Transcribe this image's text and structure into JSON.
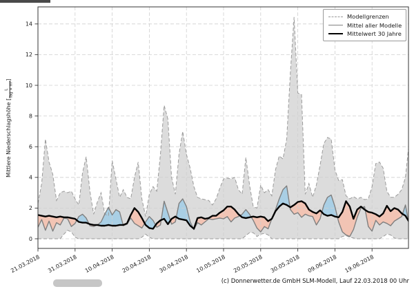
{
  "footer": {
    "credit": "(c) Donnerwetter.de GmbH SLM-Modell, Lauf 22.03.2018 00 Uhr"
  },
  "chart_data": {
    "type": "area",
    "ylabel_text": "Mittlere Niederschlagshöhe",
    "ylabel_bracket_open": "[",
    "ylabel_frac_num": "L",
    "ylabel_frac_den": "Tag × m²",
    "ylabel_bracket_close": "]",
    "y_ticks": [
      0,
      2,
      4,
      6,
      8,
      10,
      12,
      14
    ],
    "ylim": [
      -0.65,
      15.1
    ],
    "grid": true,
    "legend_position": "upper right",
    "legend": [
      {
        "label": "Modellgrenzen",
        "style": "dashed-gray"
      },
      {
        "label": "Mittel aller Modelle",
        "style": "solid-gray"
      },
      {
        "label": "Mittelwert 30 Jahre",
        "style": "solid-black"
      }
    ],
    "x_tick_days": [
      0,
      10,
      20,
      30,
      40,
      50,
      60,
      70,
      80,
      90
    ],
    "x_tick_labels": [
      "21.03.2018",
      "31.03.2018",
      "10.04.2018",
      "20.04.2018",
      "30.04.2018",
      "10.05.2018",
      "20.05.2018",
      "30.05.2018",
      "09.06.2018",
      "19.06.2018"
    ],
    "colors": {
      "envelope_fill": "#dcdcdc",
      "boundary_line": "#9a9a9a",
      "model_mean_line": "#7f7f7f",
      "mean30_line": "#000000",
      "above_fill": "#a9cfe5",
      "below_fill": "#f2c4b4",
      "grid": "#cfcfcf",
      "spine": "#333333"
    },
    "series": [
      {
        "name": "Modellgrenzen oben",
        "values": [
          2.3,
          3.6,
          6.5,
          5.0,
          4.2,
          2.5,
          3.0,
          3.1,
          3.0,
          3.1,
          2.6,
          2.2,
          4.3,
          5.35,
          3.1,
          1.6,
          2.4,
          3.0,
          1.6,
          1.5,
          5.1,
          3.9,
          2.7,
          3.2,
          2.7,
          2.6,
          4.0,
          5.0,
          2.6,
          1.45,
          2.9,
          3.4,
          3.1,
          5.5,
          8.7,
          7.8,
          4.0,
          2.9,
          5.5,
          7.0,
          5.5,
          4.6,
          3.4,
          2.7,
          2.6,
          2.55,
          2.5,
          2.2,
          2.6,
          3.3,
          3.9,
          3.95,
          3.9,
          4.0,
          3.2,
          2.9,
          5.3,
          3.5,
          2.1,
          2.0,
          3.5,
          3.0,
          3.2,
          2.8,
          4.5,
          5.4,
          5.2,
          6.5,
          10.8,
          14.45,
          9.5,
          9.4,
          2.9,
          3.6,
          2.7,
          3.5,
          4.8,
          6.2,
          6.6,
          6.5,
          4.5,
          3.8,
          3.85,
          2.8,
          2.6,
          2.75,
          2.6,
          2.7,
          2.55,
          2.6,
          3.4,
          4.9,
          5.0,
          4.6,
          3.1,
          2.7,
          2.7,
          2.9,
          3.2,
          4.0,
          6.3
        ]
      },
      {
        "name": "Modellgrenzen unten",
        "values": [
          0,
          0,
          0,
          0,
          0,
          0,
          0,
          0.3,
          0.55,
          0.45,
          0.1,
          0,
          0,
          0,
          0,
          0,
          0,
          0,
          0,
          0,
          0,
          0,
          0,
          0,
          0,
          0,
          0,
          0,
          0.1,
          0.3,
          0.1,
          0,
          0,
          0,
          0,
          0,
          0,
          0,
          0,
          0,
          0,
          0,
          0,
          0,
          0,
          0,
          0,
          0,
          0,
          0,
          0,
          0,
          0,
          0,
          0,
          0,
          0.2,
          0.4,
          0.4,
          0.15,
          0.3,
          0.35,
          0.25,
          0,
          0,
          0,
          0,
          0,
          0,
          0,
          0,
          0,
          0,
          0,
          0,
          0,
          0,
          0,
          0,
          0,
          0,
          0,
          0.15,
          0.2,
          0.1,
          0.05,
          0,
          0,
          0,
          0,
          0,
          0,
          0,
          0.15,
          0.3,
          0.25,
          0.05,
          0,
          0,
          0,
          0
        ]
      },
      {
        "name": "Mittel aller Modelle",
        "values": [
          0.75,
          1.25,
          0.55,
          1.15,
          0.5,
          1.05,
          0.9,
          1.35,
          1.3,
          0.8,
          1.0,
          1.45,
          1.6,
          1.35,
          0.85,
          0.8,
          0.9,
          1.1,
          1.6,
          2.05,
          1.55,
          1.9,
          1.75,
          0.85,
          0.95,
          1.35,
          1.0,
          0.85,
          0.7,
          1.1,
          1.45,
          1.2,
          0.75,
          0.9,
          2.45,
          1.7,
          0.95,
          1.1,
          2.3,
          2.6,
          2.1,
          1.1,
          0.6,
          1.05,
          0.9,
          1.1,
          1.3,
          1.25,
          1.3,
          1.35,
          1.3,
          1.45,
          1.1,
          1.35,
          1.45,
          1.6,
          1.9,
          1.6,
          1.2,
          0.7,
          0.45,
          0.8,
          0.65,
          1.3,
          1.9,
          2.6,
          3.2,
          3.45,
          1.9,
          1.6,
          1.7,
          1.4,
          1.6,
          1.5,
          1.45,
          0.9,
          1.3,
          2.2,
          2.7,
          2.85,
          2.1,
          1.1,
          0.45,
          0.25,
          0.15,
          0.6,
          1.4,
          2.0,
          2.1,
          0.8,
          0.5,
          1.2,
          0.9,
          1.1,
          1.0,
          0.85,
          1.15,
          1.3,
          1.45,
          2.2,
          0.9
        ]
      },
      {
        "name": "Mittelwert 30 Jahre",
        "values": [
          1.55,
          1.5,
          1.45,
          1.5,
          1.45,
          1.4,
          1.45,
          1.4,
          1.4,
          1.35,
          1.3,
          1.1,
          1.05,
          1.05,
          0.95,
          0.9,
          0.9,
          0.85,
          0.85,
          0.9,
          0.85,
          0.85,
          0.9,
          0.9,
          1.0,
          1.55,
          2.0,
          1.75,
          1.35,
          0.9,
          0.7,
          0.65,
          1.0,
          1.2,
          1.3,
          0.95,
          1.3,
          1.45,
          1.3,
          1.25,
          1.2,
          0.85,
          0.65,
          1.35,
          1.4,
          1.3,
          1.35,
          1.5,
          1.5,
          1.7,
          1.85,
          2.1,
          2.1,
          1.9,
          1.6,
          1.4,
          1.35,
          1.4,
          1.45,
          1.4,
          1.45,
          1.4,
          1.15,
          1.3,
          1.8,
          2.1,
          2.3,
          2.2,
          2.05,
          2.2,
          2.4,
          2.45,
          2.3,
          1.9,
          1.75,
          1.65,
          1.85,
          1.6,
          1.5,
          1.55,
          1.45,
          1.4,
          1.75,
          2.45,
          2.1,
          1.3,
          1.9,
          2.1,
          1.9,
          1.75,
          1.7,
          1.6,
          1.45,
          1.65,
          2.15,
          1.8,
          2.0,
          1.9,
          1.65,
          1.5,
          1.1
        ]
      }
    ]
  }
}
